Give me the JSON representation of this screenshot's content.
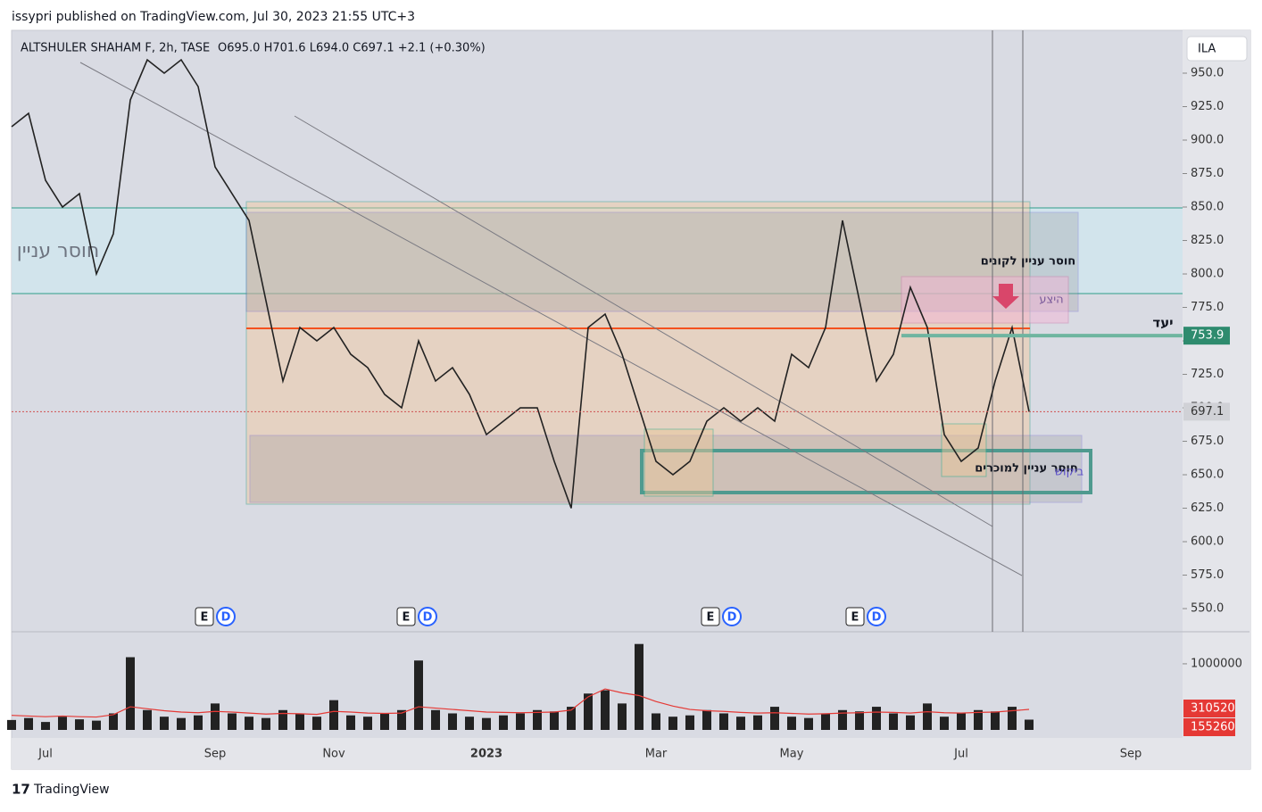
{
  "header": {
    "published": "issypri published on TradingView.com, Jul 30, 2023 21:55 UTC+3",
    "footer": "TradingView"
  },
  "chart_data": [
    {
      "type": "line",
      "title": "ALTSHULER SHAHAM F, 2h, TASE",
      "ohlc": "O695.0  H701.6  L694.0  C697.1  +2.1 (+0.30%)",
      "currency": "ILA",
      "categories": [
        "",
        null,
        "Jul",
        null,
        null,
        null,
        null,
        null,
        null,
        null,
        null,
        null,
        "Sep",
        null,
        null,
        null,
        null,
        null,
        null,
        "Nov",
        null,
        null,
        null,
        null,
        null,
        null,
        null,
        null,
        "2023",
        null,
        null,
        null,
        null,
        null,
        null,
        null,
        null,
        null,
        "Mar",
        null,
        null,
        null,
        null,
        null,
        null,
        null,
        "May",
        null,
        null,
        null,
        null,
        null,
        null,
        null,
        null,
        null,
        "Jul",
        null,
        null,
        null,
        null,
        null,
        null,
        null,
        null,
        null,
        "Sep",
        null,
        null,
        null
      ],
      "color": "#222222",
      "values": [
        910,
        920,
        870,
        850,
        860,
        800,
        830,
        930,
        960,
        950,
        960,
        940,
        880,
        860,
        840,
        780,
        720,
        760,
        750,
        760,
        740,
        730,
        710,
        700,
        750,
        720,
        730,
        710,
        680,
        690,
        700,
        700,
        660,
        625,
        760,
        770,
        740,
        700,
        660,
        650,
        660,
        690,
        700,
        690,
        700,
        690,
        740,
        730,
        760,
        840,
        780,
        720,
        740,
        790,
        760,
        680,
        660,
        670,
        720,
        760,
        697.1,
        null,
        null,
        null,
        null,
        null,
        null,
        null,
        null,
        null
      ],
      "ylim": [
        532.7,
        982
      ],
      "yticks": [
        {
          "value": 550,
          "label": "550.0"
        },
        {
          "value": 575,
          "label": "575.0"
        },
        {
          "value": 600,
          "label": "600.0"
        },
        {
          "value": 625,
          "label": "625.0"
        },
        {
          "value": 650,
          "label": "650.0"
        },
        {
          "value": 675,
          "label": "675.0"
        },
        {
          "value": 700,
          "label": "700.0"
        },
        {
          "value": 725,
          "label": "725.0"
        },
        {
          "value": 750,
          "label": "750.0"
        },
        {
          "value": 775,
          "label": "775.0"
        },
        {
          "value": 800,
          "label": "800.0"
        },
        {
          "value": 825,
          "label": "825.0"
        },
        {
          "value": 850,
          "label": "850.0"
        },
        {
          "value": 875,
          "label": "875.0"
        },
        {
          "value": 900,
          "label": "900.0"
        },
        {
          "value": 925,
          "label": "925.0"
        },
        {
          "value": 950,
          "label": "950.0"
        }
      ],
      "last_price": 697.1,
      "target": {
        "label": "יעד",
        "value": 753.9
      },
      "annotations": {
        "left_zone": "חוסר עניין",
        "buyers": "חוסר עניין לקונים",
        "supply": "היצע",
        "sellers": "חוסר עניין למוכרים",
        "demand": "ביקוש"
      },
      "events": [
        [
          "E",
          "D"
        ],
        [
          "E",
          "D"
        ],
        [
          "E",
          "D"
        ],
        [
          "E",
          "D"
        ]
      ]
    },
    {
      "type": "bar",
      "color": "#222222",
      "values": [
        150000,
        180000,
        120000,
        200000,
        160000,
        140000,
        250000,
        1100000,
        300000,
        200000,
        180000,
        220000,
        400000,
        250000,
        200000,
        180000,
        300000,
        250000,
        200000,
        450000,
        220000,
        200000,
        250000,
        300000,
        1050000,
        300000,
        250000,
        200000,
        180000,
        220000,
        250000,
        300000,
        280000,
        350000,
        550000,
        600000,
        400000,
        1300000,
        250000,
        200000,
        220000,
        300000,
        250000,
        200000,
        220000,
        350000,
        200000,
        180000,
        250000,
        300000,
        280000,
        350000,
        250000,
        220000,
        400000,
        200000,
        250000,
        300000,
        280000,
        350000,
        155260,
        null,
        null,
        null,
        null,
        null,
        null,
        null,
        null,
        null
      ],
      "ma_color": "#e53935",
      "ma_values": [
        220000,
        210000,
        200000,
        210000,
        200000,
        195000,
        230000,
        350000,
        320000,
        290000,
        270000,
        260000,
        280000,
        270000,
        255000,
        240000,
        250000,
        245000,
        235000,
        280000,
        270000,
        255000,
        250000,
        255000,
        350000,
        330000,
        310000,
        290000,
        270000,
        265000,
        260000,
        265000,
        270000,
        300000,
        500000,
        620000,
        560000,
        520000,
        430000,
        360000,
        310000,
        290000,
        280000,
        265000,
        255000,
        260000,
        250000,
        240000,
        245000,
        255000,
        260000,
        270000,
        265000,
        255000,
        275000,
        260000,
        255000,
        265000,
        270000,
        290000,
        310520,
        null,
        null,
        null,
        null,
        null,
        null,
        null,
        null,
        null
      ],
      "ylim": [
        0,
        1350000
      ],
      "yticks": [
        1000000
      ]
    }
  ]
}
